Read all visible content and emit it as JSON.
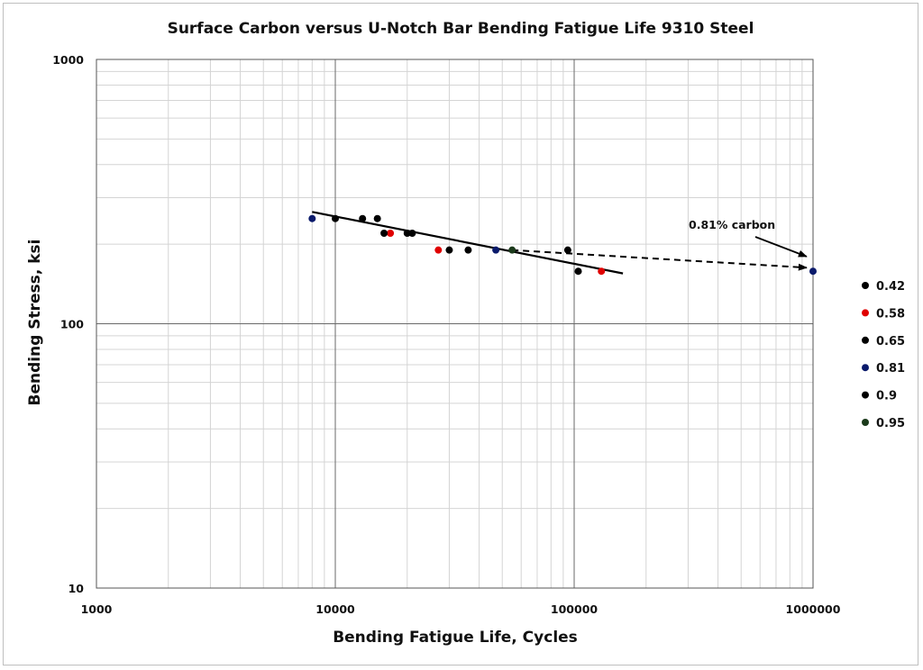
{
  "chart_data": {
    "type": "scatter",
    "title": "Surface Carbon versus U-Notch Bar Bending Fatigue Life 9310 Steel",
    "xlabel": "Bending Fatigue Life, Cycles",
    "ylabel": "Bending Stress, ksi",
    "xscale": "log",
    "yscale": "log",
    "xlim": [
      1000,
      1000000
    ],
    "ylim": [
      10,
      1000
    ],
    "x_ticks": [
      "1000",
      "10000",
      "100000",
      "1000000"
    ],
    "y_ticks": [
      "10",
      "100",
      "1000"
    ],
    "grid": true,
    "legend_position": "right",
    "series": [
      {
        "name": "0.42",
        "color": "#000000",
        "points": [
          [
            10000,
            250
          ],
          [
            13000,
            250
          ],
          [
            15000,
            250
          ],
          [
            20000,
            220
          ],
          [
            30000,
            190
          ],
          [
            36000,
            190
          ]
        ]
      },
      {
        "name": "0.58",
        "color": "#e00000",
        "points": [
          [
            17000,
            220
          ],
          [
            27000,
            190
          ],
          [
            130000,
            158
          ]
        ]
      },
      {
        "name": "0.65",
        "color": "#000000",
        "points": [
          [
            16000,
            220
          ],
          [
            21000,
            220
          ],
          [
            94000,
            190
          ],
          [
            104000,
            158
          ]
        ]
      },
      {
        "name": "0.81",
        "color": "#0a1a6b",
        "points": [
          [
            8000,
            250
          ],
          [
            47000,
            190
          ],
          [
            1000000,
            158
          ]
        ]
      },
      {
        "name": "0.9",
        "color": "#000000",
        "points": []
      },
      {
        "name": "0.95",
        "color": "#1b3a1b",
        "points": [
          [
            55000,
            190
          ]
        ]
      }
    ],
    "trend_solid": [
      [
        8000,
        265
      ],
      [
        160000,
        155
      ]
    ],
    "trend_dashed": [
      [
        55000,
        190
      ],
      [
        940000,
        163
      ]
    ],
    "annotation": {
      "text": "0.81% carbon",
      "target": [
        940000,
        166
      ]
    }
  }
}
